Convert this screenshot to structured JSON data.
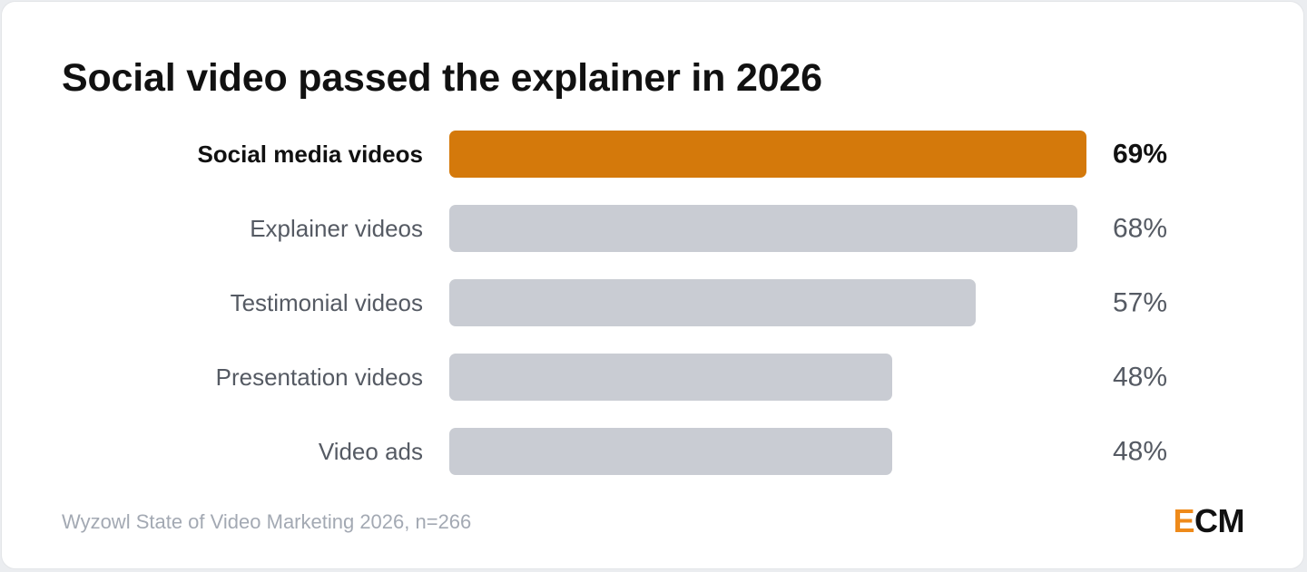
{
  "chart_data": {
    "type": "bar",
    "orientation": "horizontal",
    "title": "Social video passed the explainer in 2026",
    "categories": [
      "Social media videos",
      "Explainer videos",
      "Testimonial videos",
      "Presentation videos",
      "Video ads"
    ],
    "values": [
      69,
      68,
      57,
      48,
      48
    ],
    "value_labels": [
      "69%",
      "68%",
      "57%",
      "48%",
      "48%"
    ],
    "unit": "%",
    "highlight_index": 0,
    "xlim": [
      0,
      69
    ],
    "grid": false,
    "legend": "none",
    "colors": {
      "highlight": "#d4790b",
      "default": "#c9ccd3",
      "highlight_text": "#111111",
      "default_text": "#555a63"
    }
  },
  "footer": {
    "source": "Wyzowl State of Video Marketing 2026, n=266"
  },
  "logo": {
    "accent_letter": "E",
    "rest": "CM",
    "accent_color": "#ee8a1a"
  }
}
